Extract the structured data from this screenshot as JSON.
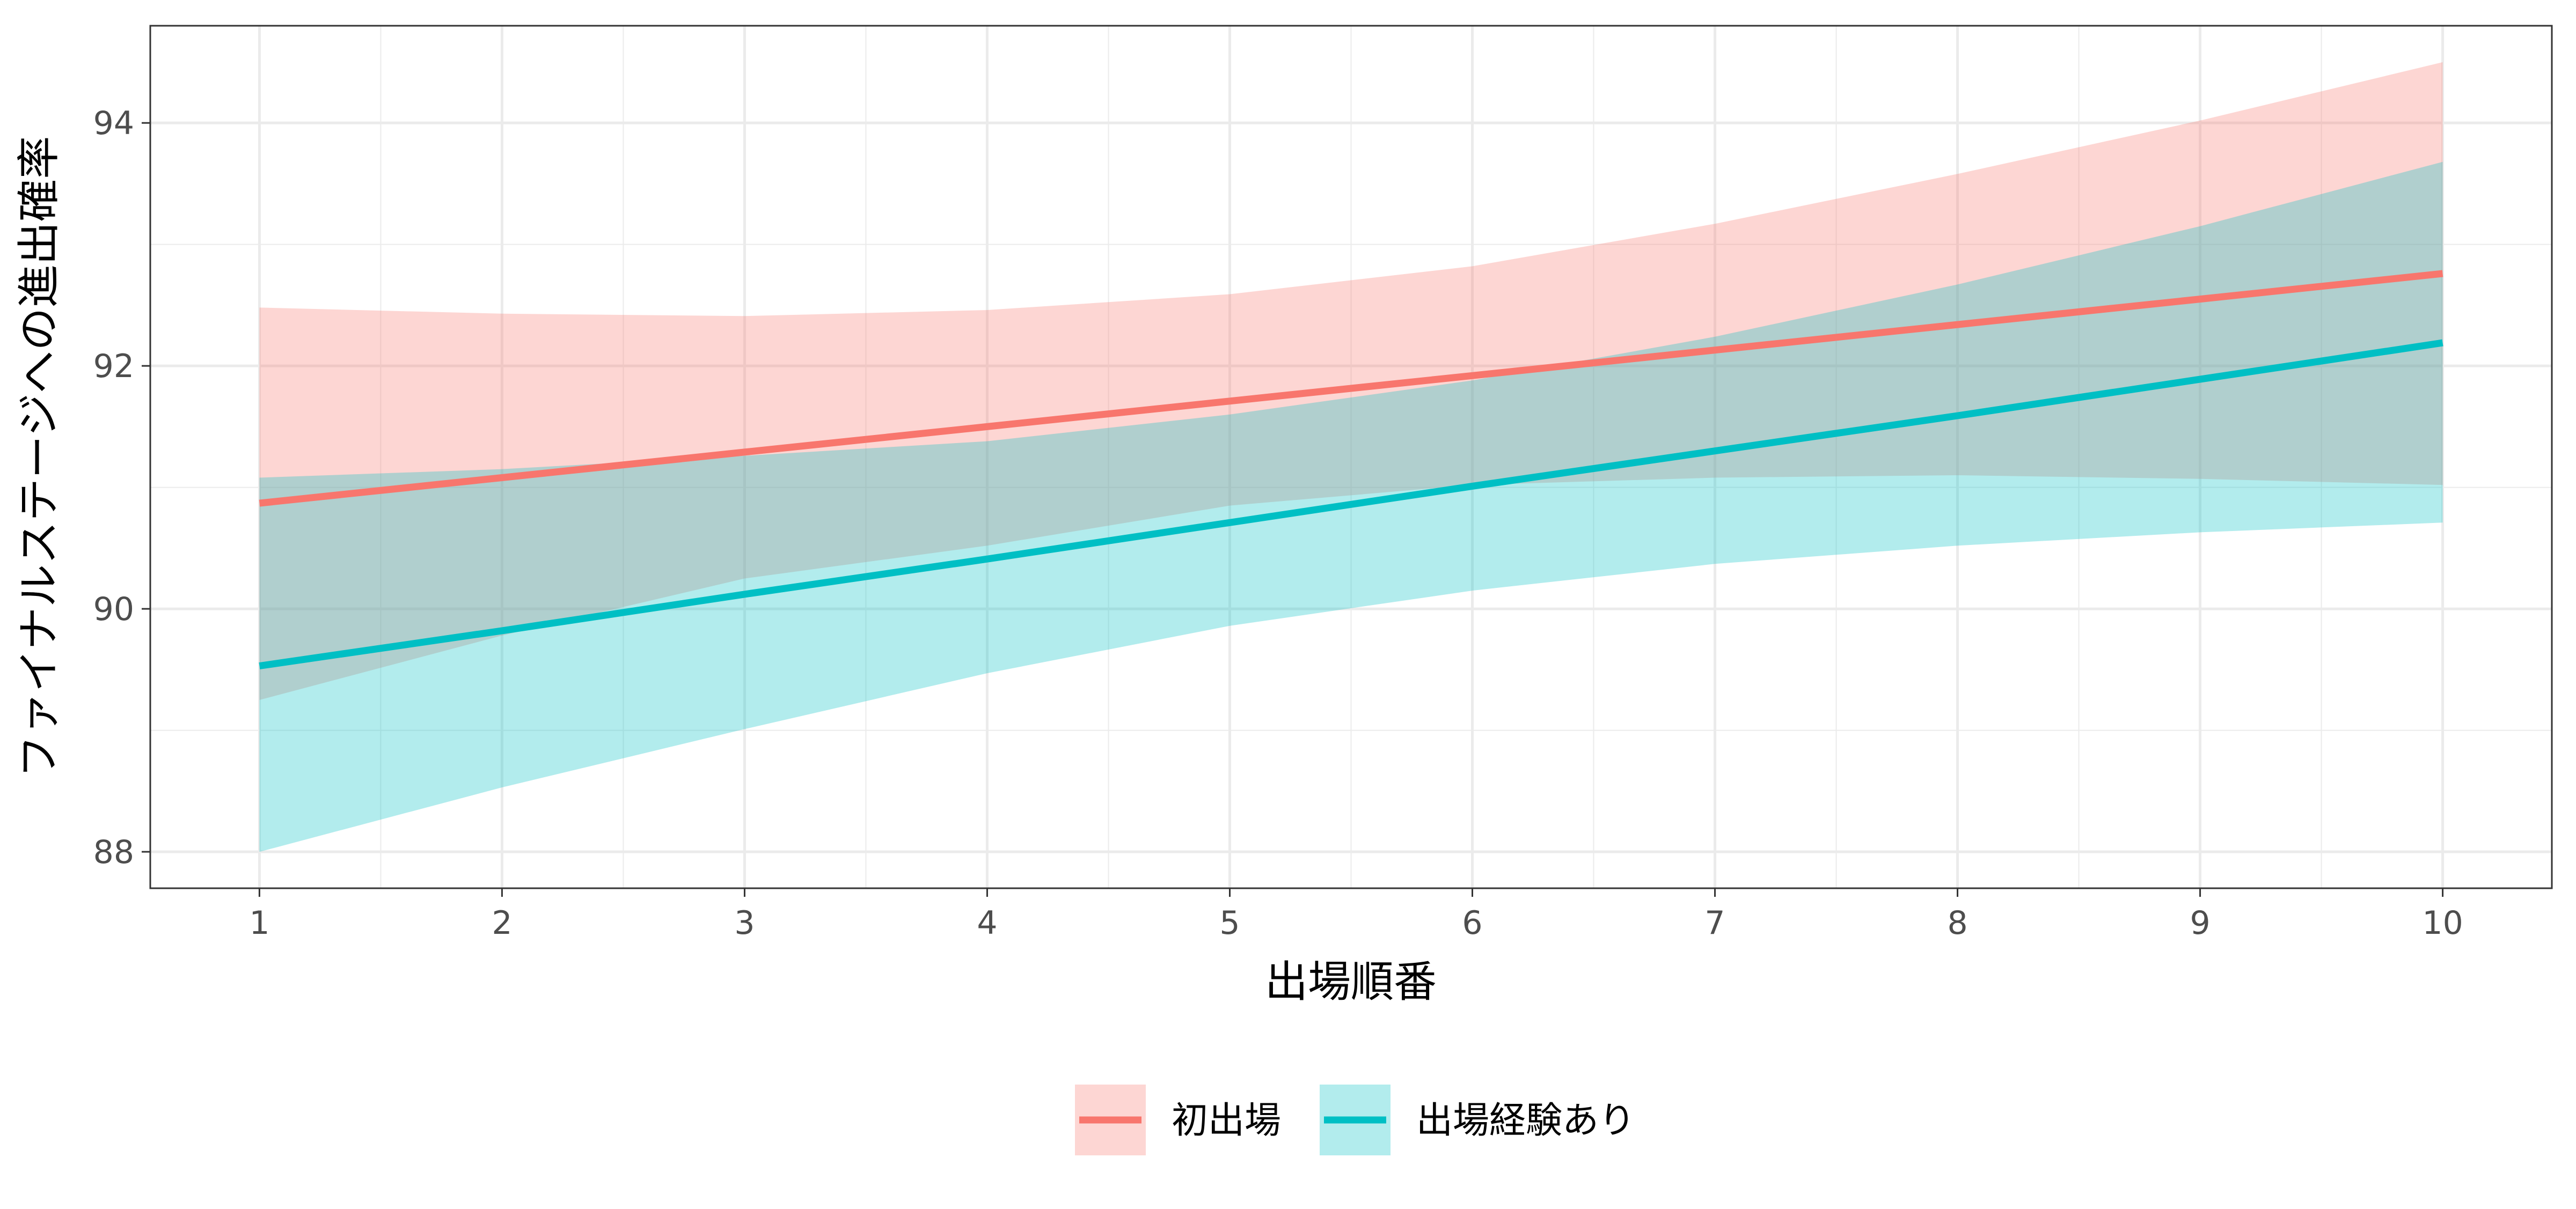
{
  "chart_data": {
    "type": "line",
    "title": "",
    "xlabel": "出場順番",
    "ylabel": "ファイナルステージへの進出確率",
    "x": [
      1,
      2,
      3,
      4,
      5,
      6,
      7,
      8,
      9,
      10
    ],
    "xlim": [
      0.55,
      10.45
    ],
    "ylim": [
      87.7,
      94.8
    ],
    "x_ticks": [
      "1",
      "2",
      "3",
      "4",
      "5",
      "6",
      "7",
      "8",
      "9",
      "10"
    ],
    "y_ticks": [
      "88",
      "90",
      "92",
      "94"
    ],
    "grid": true,
    "legend_position": "bottom",
    "series": [
      {
        "name": "初出場",
        "color": "#F8766D",
        "values": [
          90.87,
          91.08,
          91.29,
          91.5,
          91.71,
          91.92,
          92.13,
          92.34,
          92.55,
          92.76
        ],
        "lower": [
          89.25,
          89.78,
          90.25,
          90.52,
          90.85,
          91.02,
          91.08,
          91.1,
          91.07,
          91.02
        ],
        "upper": [
          92.48,
          92.43,
          92.41,
          92.46,
          92.59,
          92.82,
          93.17,
          93.58,
          94.02,
          94.5
        ]
      },
      {
        "name": "出場経験あり",
        "color": "#00BFC4",
        "values": [
          89.53,
          89.82,
          90.12,
          90.41,
          90.71,
          91.01,
          91.3,
          91.59,
          91.89,
          92.19
        ],
        "lower": [
          88.0,
          88.53,
          89.01,
          89.47,
          89.86,
          90.15,
          90.37,
          90.52,
          90.63,
          90.71
        ],
        "upper": [
          91.08,
          91.15,
          91.26,
          91.38,
          91.6,
          91.88,
          92.24,
          92.67,
          93.15,
          93.68
        ]
      }
    ]
  }
}
